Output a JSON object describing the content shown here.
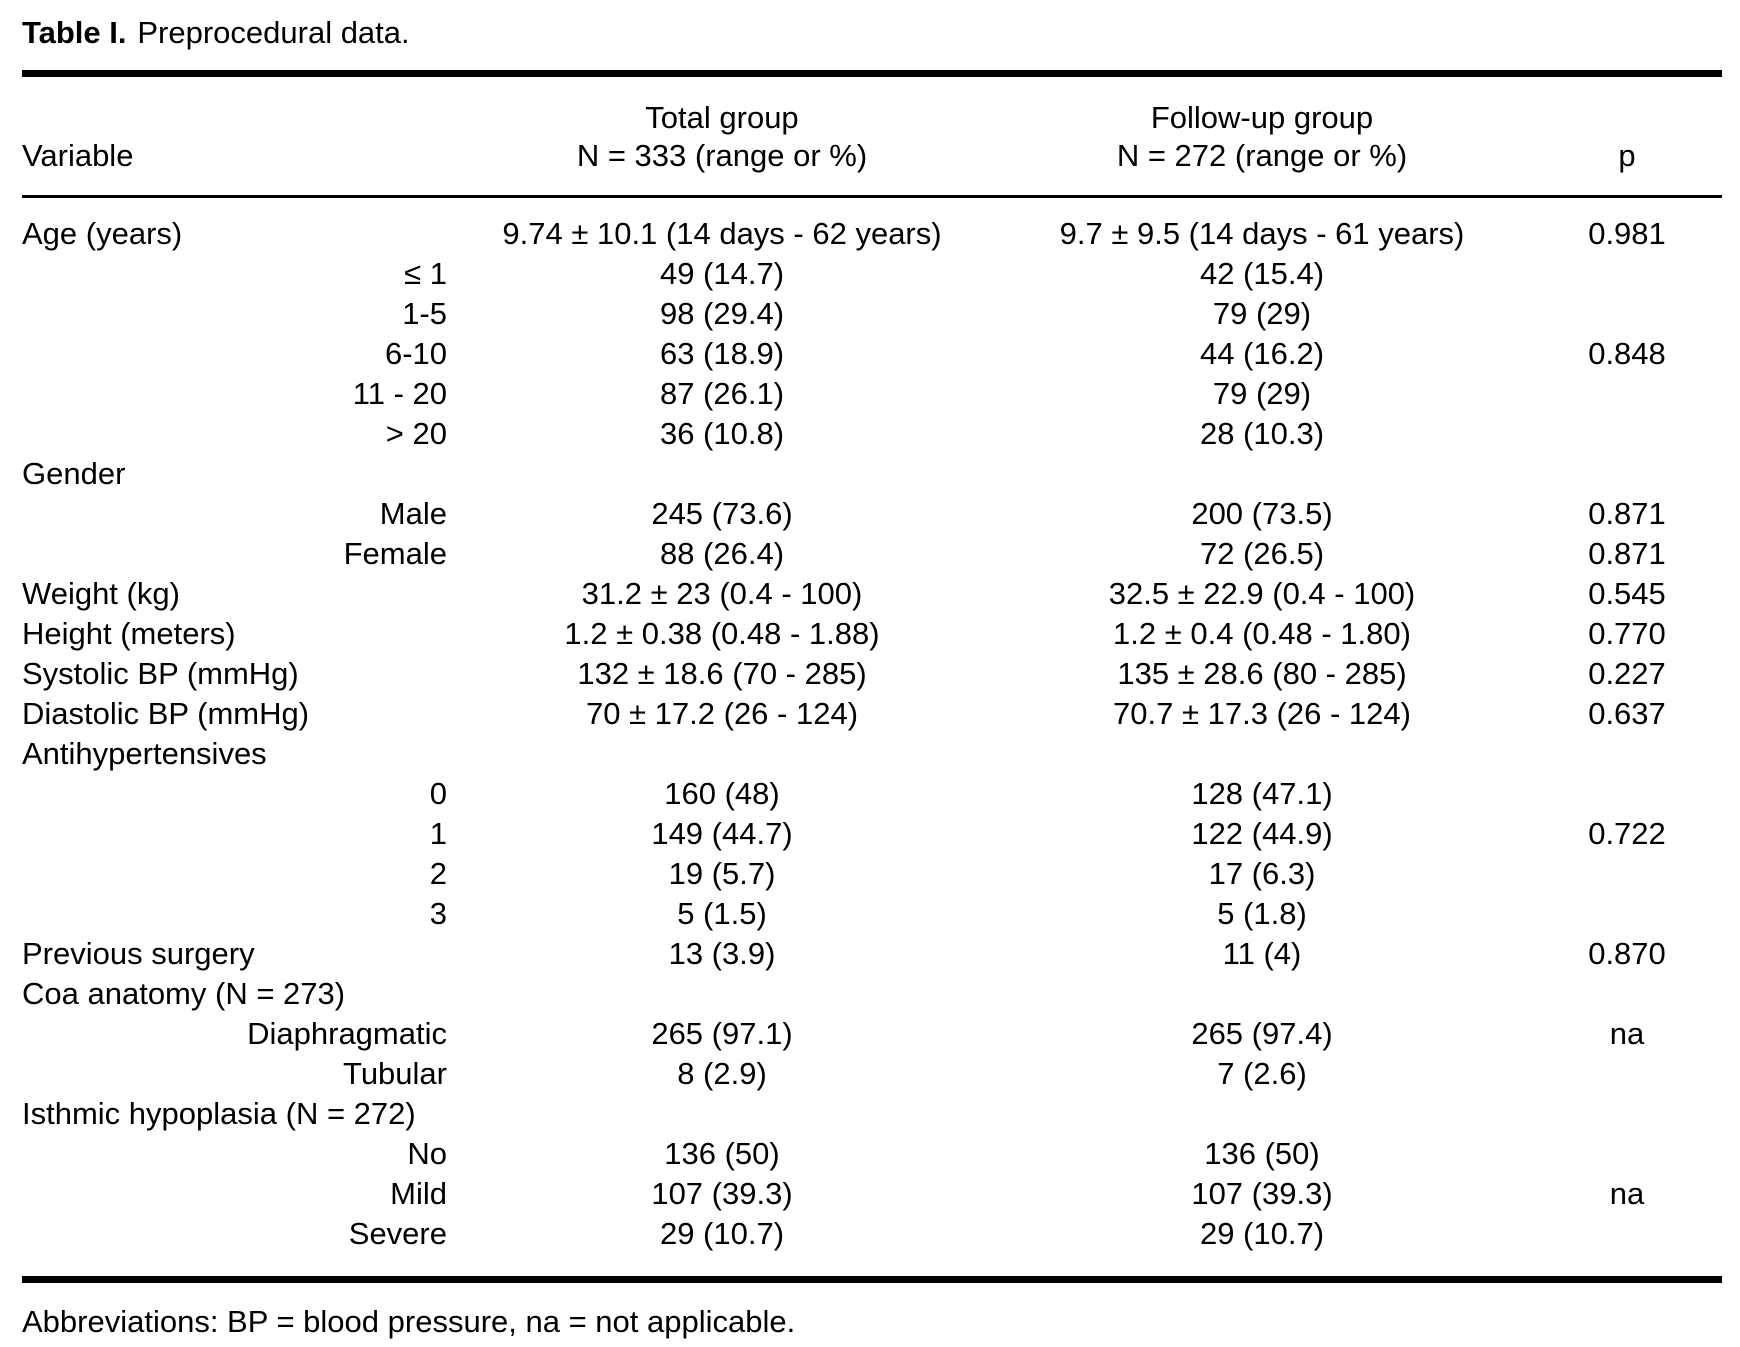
{
  "title": {
    "label": "Table I.",
    "text": "Preprocedural data."
  },
  "table": {
    "headers": {
      "variable": "Variable",
      "total_line1": "Total group",
      "total_line2": "N = 333 (range or %)",
      "followup_line1": "Follow-up group",
      "followup_line2": "N = 272 (range or %)",
      "p": "p"
    },
    "rows": [
      {
        "label": "Age (years)",
        "sub": false,
        "total": "9.74 ± 10.1 (14 days - 62 years)",
        "followup": "9.7 ± 9.5 (14 days - 61 years)",
        "p": "0.981"
      },
      {
        "label": "≤ 1",
        "sub": true,
        "total": "49 (14.7)",
        "followup": "42 (15.4)",
        "p": ""
      },
      {
        "label": "1-5",
        "sub": true,
        "total": "98 (29.4)",
        "followup": "79 (29)",
        "p": ""
      },
      {
        "label": "6-10",
        "sub": true,
        "total": "63 (18.9)",
        "followup": "44 (16.2)",
        "p": "0.848"
      },
      {
        "label": "11 - 20",
        "sub": true,
        "total": "87 (26.1)",
        "followup": "79 (29)",
        "p": ""
      },
      {
        "label": "> 20",
        "sub": true,
        "total": "36 (10.8)",
        "followup": "28 (10.3)",
        "p": ""
      },
      {
        "label": "Gender",
        "sub": false,
        "total": "",
        "followup": "",
        "p": ""
      },
      {
        "label": "Male",
        "sub": true,
        "total": "245 (73.6)",
        "followup": "200 (73.5)",
        "p": "0.871"
      },
      {
        "label": "Female",
        "sub": true,
        "total": "88 (26.4)",
        "followup": "72 (26.5)",
        "p": "0.871"
      },
      {
        "label": "Weight (kg)",
        "sub": false,
        "total": "31.2 ± 23 (0.4 - 100)",
        "followup": "32.5 ± 22.9 (0.4 - 100)",
        "p": "0.545"
      },
      {
        "label": "Height (meters)",
        "sub": false,
        "total": "1.2 ± 0.38 (0.48 - 1.88)",
        "followup": "1.2 ± 0.4 (0.48 - 1.80)",
        "p": "0.770"
      },
      {
        "label": "Systolic BP (mmHg)",
        "sub": false,
        "total": "132 ± 18.6 (70 - 285)",
        "followup": "135 ± 28.6 (80 - 285)",
        "p": "0.227"
      },
      {
        "label": "Diastolic BP (mmHg)",
        "sub": false,
        "total": "70 ± 17.2 (26 - 124)",
        "followup": "70.7 ± 17.3 (26 - 124)",
        "p": "0.637"
      },
      {
        "label": "Antihypertensives",
        "sub": false,
        "total": "",
        "followup": "",
        "p": ""
      },
      {
        "label": "0",
        "sub": true,
        "total": "160 (48)",
        "followup": "128 (47.1)",
        "p": ""
      },
      {
        "label": "1",
        "sub": true,
        "total": "149 (44.7)",
        "followup": "122 (44.9)",
        "p": "0.722"
      },
      {
        "label": "2",
        "sub": true,
        "total": "19 (5.7)",
        "followup": "17 (6.3)",
        "p": ""
      },
      {
        "label": "3",
        "sub": true,
        "total": "5 (1.5)",
        "followup": "5 (1.8)",
        "p": ""
      },
      {
        "label": "Previous surgery",
        "sub": false,
        "total": "13 (3.9)",
        "followup": "11 (4)",
        "p": "0.870"
      },
      {
        "label": "Coa anatomy (N = 273)",
        "sub": false,
        "total": "",
        "followup": "",
        "p": ""
      },
      {
        "label": "Diaphragmatic",
        "sub": true,
        "total": "265 (97.1)",
        "followup": "265 (97.4)",
        "p": "na"
      },
      {
        "label": "Tubular",
        "sub": true,
        "total": "8 (2.9)",
        "followup": "7 (2.6)",
        "p": ""
      },
      {
        "label": "Isthmic hypoplasia (N = 272)",
        "sub": false,
        "total": "",
        "followup": "",
        "p": ""
      },
      {
        "label": "No",
        "sub": true,
        "total": "136 (50)",
        "followup": "136 (50)",
        "p": ""
      },
      {
        "label": "Mild",
        "sub": true,
        "total": "107 (39.3)",
        "followup": "107 (39.3)",
        "p": "na"
      },
      {
        "label": "Severe",
        "sub": true,
        "total": "29 (10.7)",
        "followup": "29 (10.7)",
        "p": ""
      }
    ]
  },
  "footnote": "Abbreviations: BP = blood pressure, na = not applicable."
}
